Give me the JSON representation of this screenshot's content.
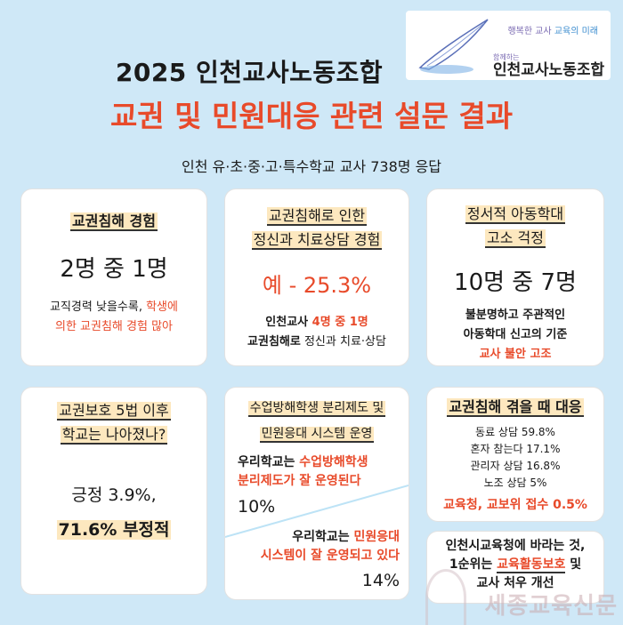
{
  "header": {
    "title_line1": "2025 인천교사노동조합",
    "title_line2": "교권 및 민원대응 관련 설문 결과",
    "subtitle": "인천 유·초·중·고·특수학교 교사 738명 응답"
  },
  "logo": {
    "slogan_a": "행복한 교사",
    "slogan_b": "교육의 미래",
    "small": "함께하는",
    "org": "인천교사노동조합"
  },
  "cards": {
    "c1": {
      "heading": "교권침해 경험",
      "value": "2명 중 1명",
      "note_a": "교직경력 낮을수록, ",
      "note_b": "학생에",
      "note_c": "의한 교권침해 경험 많아"
    },
    "c2": {
      "heading_a": "교권침해로 인한",
      "heading_b": "정신과 치료상담 경험",
      "value": "예 - 25.3%",
      "note_a": "인천교사 ",
      "note_b": "4명 중 1명",
      "note_c": "교권침해로",
      "note_d": " 정신과 치료·상담"
    },
    "c3": {
      "heading_a": "정서적 아동학대",
      "heading_b": "고소 걱정",
      "value": "10명 중 7명",
      "note_a": "불분명하고 주관적인",
      "note_b": "아동학대 신고의 기준",
      "note_c": "교사 불안 고조"
    },
    "c4": {
      "heading_a": "교권보호 5법 이후",
      "heading_b": "학교는 나아졌나?",
      "value_a": "긍정 3.9%,",
      "value_b": "71.6% 부정적"
    },
    "c5": {
      "heading_a": "수업방해학생 분리제도 및",
      "heading_b": "민원응대 시스템 운영",
      "s1_a": "우리학교는 ",
      "s1_b": "수업방해학생",
      "s1_c": "분리제도가 잘 운영된다",
      "s1_v": "10%",
      "s2_a": "우리학교는 ",
      "s2_b": "민원응대",
      "s2_c": "시스템이 잘 운영되고 있다",
      "s2_v": "14%"
    },
    "c6": {
      "heading": "교권침해 겪을 때 대응",
      "items": [
        "동료 상담 59.8%",
        "혼자 참는다 17.1%",
        "관리자 상담 16.8%",
        "노조 상담 5%"
      ],
      "last": "교육청, 교보위 접수 0.5%"
    },
    "c7": {
      "line_a": "인천시교육청에 바라는 것,",
      "line_b1": "1순위는 ",
      "line_b2": "교육활동보호",
      "line_b3": " 및",
      "line_c": "교사 처우 개선"
    }
  },
  "watermark": "세종교육신문",
  "colors": {
    "accent": "#e84a2a",
    "background": "#cfe8f7",
    "highlight": "#fde8bf"
  }
}
